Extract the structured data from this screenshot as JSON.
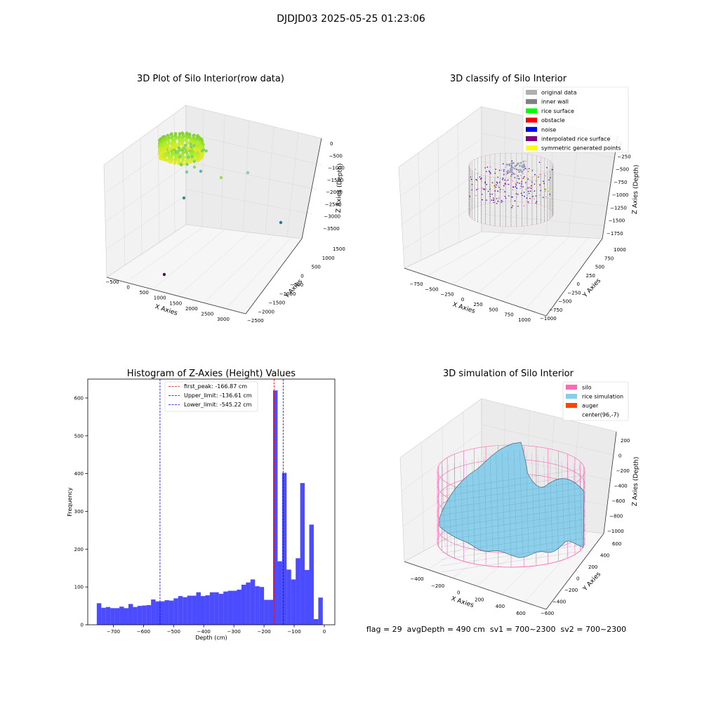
{
  "figure_title": "DJDJD03 2025-05-25 01:23:06",
  "chart_data": [
    {
      "type": "scatter3d",
      "title": "3D Plot of Silo Interior(row data)",
      "xlabel": "X Axies",
      "ylabel": "Y Axies",
      "zlabel": "Z Axies (Depth)",
      "xticks": [
        "−500",
        "0",
        "500",
        "1000",
        "1500",
        "2000",
        "2500",
        "3000"
      ],
      "yticks": [
        "−2500",
        "−2000",
        "−1500",
        "−1000",
        "−500",
        "0",
        "500",
        "1000",
        "1500"
      ],
      "zticks": [
        "0",
        "−500",
        "−1000",
        "−1500",
        "−2000",
        "−2500",
        "−3000",
        "−3500"
      ],
      "outliers": [
        {
          "x": 200,
          "y": 300,
          "z": -1100
        },
        {
          "x": 500,
          "y": 700,
          "z": -1400
        },
        {
          "x": 1400,
          "y": 1200,
          "z": -1500
        },
        {
          "x": 300,
          "y": -500,
          "z": -2000
        },
        {
          "x": 2500,
          "y": 800,
          "z": -3200
        },
        {
          "x": 1000,
          "y": -1500,
          "z": -3600
        }
      ]
    },
    {
      "type": "scatter3d",
      "title": "3D classify of Silo Interior",
      "xlabel": "X Axies",
      "ylabel": "Y Axies",
      "zlabel": "Z Axies (Depth)",
      "xticks": [
        "−750",
        "−500",
        "−250",
        "0",
        "250",
        "500",
        "750",
        "1000"
      ],
      "yticks": [
        "−1000",
        "−750",
        "−500",
        "−250",
        "0",
        "250",
        "500",
        "750",
        "1000"
      ],
      "zticks": [
        "0",
        "−250",
        "−500",
        "−750",
        "−1000",
        "−1250",
        "−1500",
        "−1750"
      ],
      "legend_position": "top-right",
      "legend": [
        {
          "label": "original data",
          "color": "#b0b0b0"
        },
        {
          "label": "inner wall",
          "color": "#808080"
        },
        {
          "label": "rice surface",
          "color": "#00ff00"
        },
        {
          "label": "obstacle",
          "color": "#ff0000"
        },
        {
          "label": "noise",
          "color": "#0000ff"
        },
        {
          "label": "interpolated rice surface",
          "color": "#800080"
        },
        {
          "label": "symmetric generated points",
          "color": "#ffff00"
        }
      ]
    },
    {
      "type": "bar",
      "title": "Histogram of Z-Axies (Height) Values",
      "xlabel": "Depth (cm)",
      "ylabel": "Frequency",
      "xlim": [
        -785,
        35
      ],
      "ylim": [
        0,
        650
      ],
      "xticks": [
        -700,
        -600,
        -500,
        -400,
        -300,
        -200,
        -100,
        0
      ],
      "yticks": [
        0,
        100,
        200,
        300,
        400,
        500,
        600
      ],
      "bin_start": -755,
      "bin_width": 15,
      "values": [
        57,
        45,
        47,
        44,
        44,
        48,
        44,
        55,
        47,
        50,
        51,
        52,
        67,
        62,
        62,
        65,
        64,
        70,
        76,
        73,
        77,
        77,
        86,
        76,
        78,
        86,
        86,
        82,
        88,
        90,
        90,
        93,
        106,
        112,
        120,
        102,
        100,
        66,
        66,
        620,
        168,
        402,
        146,
        120,
        176,
        375,
        145,
        265,
        15,
        72
      ],
      "bar_color": "#0000ff",
      "lines": [
        {
          "x": -166.87,
          "color": "#ff0000",
          "label": "first_peak: -166.87 cm"
        },
        {
          "x": -136.61,
          "color": "#0000ff",
          "label": "Upper_limit: -136.61 cm"
        },
        {
          "x": -545.22,
          "color": "#0000ff",
          "label": "Lower_limit: -545.22 cm"
        }
      ]
    },
    {
      "type": "surface3d",
      "title": "3D simulation of Silo Interior",
      "xlabel": "X Axies",
      "ylabel": "Y Axies",
      "zlabel": "Z Axies (Depth)",
      "xticks": [
        "−400",
        "−200",
        "0",
        "200",
        "400",
        "600"
      ],
      "yticks": [
        "−600",
        "−400",
        "−200",
        "0",
        "200",
        "400",
        "600"
      ],
      "zticks": [
        "200",
        "0",
        "−200",
        "−400",
        "−600",
        "−800",
        "−1000"
      ],
      "legend_position": "top-right",
      "legend": [
        {
          "label": "silo",
          "color": "#ff69b4"
        },
        {
          "label": "rice simulation",
          "color": "#87ceeb"
        },
        {
          "label": "auger",
          "color": "#ff4500"
        },
        {
          "label": "center(96,-7)",
          "color": "#ffffff"
        }
      ]
    }
  ],
  "footer": "flag = 29  avgDepth = 490 cm  sv1 = 700~2300  sv2 = 700~2300"
}
